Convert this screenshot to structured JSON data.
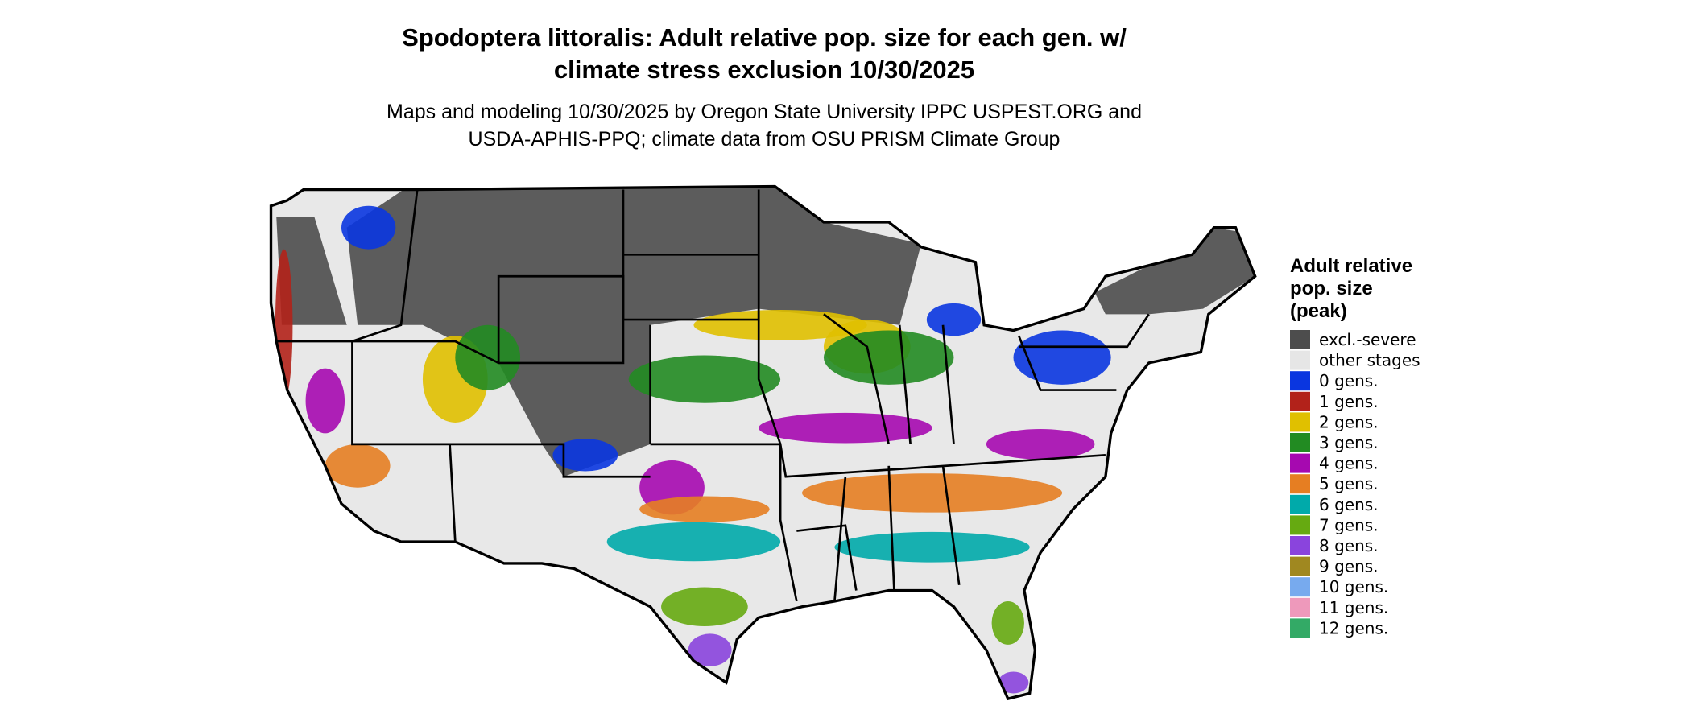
{
  "header": {
    "title": [
      "Spodoptera littoralis: Adult relative pop. size for each gen. w/",
      "climate stress exclusion 10/30/2025"
    ],
    "subtitle": [
      "Maps and modeling 10/30/2025 by Oregon State University IPPC USPEST.ORG and",
      "USDA-APHIS-PPQ; climate data from OSU PRISM Climate Group"
    ]
  },
  "legend": {
    "title": [
      "Adult relative",
      "pop. size",
      "(peak)"
    ],
    "items": [
      {
        "label": "excl.-severe",
        "color": "#4d4d4d"
      },
      {
        "label": "other stages",
        "color": "#e6e6e6"
      },
      {
        "label": "0 gens.",
        "color": "#0a36e0"
      },
      {
        "label": "1 gens.",
        "color": "#b2221a"
      },
      {
        "label": "2 gens.",
        "color": "#e0c000"
      },
      {
        "label": "3 gens.",
        "color": "#228b22"
      },
      {
        "label": "4 gens.",
        "color": "#a609b0"
      },
      {
        "label": "5 gens.",
        "color": "#e67e22"
      },
      {
        "label": "6 gens.",
        "color": "#00aaaa"
      },
      {
        "label": "7 gens.",
        "color": "#66aa11"
      },
      {
        "label": "8 gens.",
        "color": "#8a44dd"
      },
      {
        "label": "9 gens.",
        "color": "#a08820"
      },
      {
        "label": "10 gens.",
        "color": "#77aaee"
      },
      {
        "label": "11 gens.",
        "color": "#ee99bb"
      },
      {
        "label": "12 gens.",
        "color": "#33aa66"
      }
    ]
  }
}
